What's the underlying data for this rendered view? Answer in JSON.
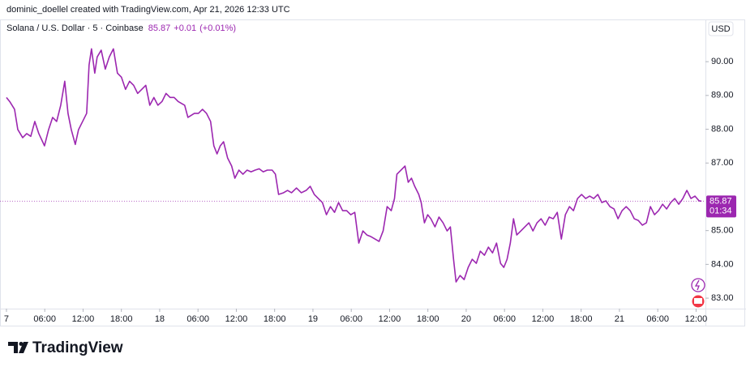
{
  "chart_data": {
    "type": "line",
    "header": "dominic_doellel created with TradingView.com, Apr 21, 2026 12:33 UTC",
    "brand": "TradingView",
    "currency": "USD",
    "last_price": 85.87,
    "change": "+0.01",
    "change_pct": "(+0.01%)",
    "countdown": "01:34",
    "grid": false,
    "xlim": [
      -1.01,
      109.47
    ],
    "ylim": [
      82.69,
      91.25
    ],
    "xticks": [
      {
        "value": 0,
        "label": "7"
      },
      {
        "value": 6,
        "label": "06:00"
      },
      {
        "value": 12,
        "label": "12:00"
      },
      {
        "value": 18,
        "label": "18:00"
      },
      {
        "value": 24,
        "label": "18"
      },
      {
        "value": 30,
        "label": "06:00"
      },
      {
        "value": 36,
        "label": "12:00"
      },
      {
        "value": 42,
        "label": "18:00"
      },
      {
        "value": 48,
        "label": "19"
      },
      {
        "value": 54,
        "label": "06:00"
      },
      {
        "value": 60,
        "label": "12:00"
      },
      {
        "value": 66,
        "label": "18:00"
      },
      {
        "value": 72,
        "label": "20"
      },
      {
        "value": 78,
        "label": "06:00"
      },
      {
        "value": 84,
        "label": "12:00"
      },
      {
        "value": 90,
        "label": "18:00"
      },
      {
        "value": 96,
        "label": "21"
      },
      {
        "value": 102,
        "label": "06:00"
      },
      {
        "value": 108,
        "label": "12:00"
      }
    ],
    "yticks": [
      {
        "value": 83,
        "label": "83.00"
      },
      {
        "value": 84,
        "label": "84.00"
      },
      {
        "value": 85,
        "label": "85.00"
      },
      {
        "value": 87,
        "label": "87.00"
      },
      {
        "value": 88,
        "label": "88.00"
      },
      {
        "value": 89,
        "label": "89.00"
      },
      {
        "value": 90,
        "label": "90.00"
      }
    ],
    "x": [
      0,
      0.51,
      1.27,
      1.78,
      2.54,
      3.17,
      3.81,
      4.44,
      5.07,
      5.96,
      6.6,
      7.23,
      7.86,
      8.5,
      9.13,
      9.64,
      10.15,
      10.78,
      11.29,
      11.93,
      12.56,
      12.94,
      13.32,
      13.83,
      14.21,
      14.84,
      15.48,
      16.11,
      16.75,
      17.38,
      18.01,
      18.65,
      19.28,
      19.92,
      20.55,
      21.19,
      21.82,
      22.45,
      23.09,
      23.72,
      24.36,
      24.99,
      25.63,
      26.26,
      26.89,
      27.91,
      28.42,
      29.43,
      30.07,
      30.7,
      31.33,
      31.97,
      32.48,
      32.98,
      33.49,
      34.0,
      34.63,
      35.27,
      35.77,
      36.41,
      37.04,
      37.68,
      38.31,
      38.95,
      39.58,
      40.21,
      40.85,
      41.61,
      42.12,
      42.62,
      43.39,
      44.02,
      44.65,
      45.42,
      46.18,
      46.94,
      47.57,
      48.21,
      48.84,
      49.48,
      50.11,
      50.74,
      51.38,
      52.01,
      52.65,
      53.28,
      53.92,
      54.55,
      55.18,
      55.82,
      56.45,
      57.09,
      57.72,
      58.36,
      58.99,
      59.62,
      60.26,
      60.77,
      61.15,
      61.78,
      62.42,
      62.92,
      63.43,
      63.94,
      64.57,
      64.95,
      65.46,
      65.97,
      66.47,
      67.11,
      67.74,
      68.38,
      69.01,
      69.52,
      70.02,
      70.41,
      71.04,
      71.68,
      72.31,
      72.94,
      73.58,
      74.21,
      74.85,
      75.48,
      76.12,
      76.75,
      77.38,
      77.89,
      78.4,
      78.91,
      79.41,
      79.92,
      80.56,
      81.19,
      81.82,
      82.46,
      83.09,
      83.73,
      84.36,
      85.0,
      85.63,
      86.26,
      86.9,
      87.53,
      88.17,
      88.8,
      89.44,
      90.07,
      90.71,
      91.34,
      91.97,
      92.61,
      93.24,
      93.88,
      94.51,
      95.15,
      95.78,
      96.41,
      97.05,
      97.68,
      98.32,
      98.95,
      99.59,
      100.22,
      100.85,
      101.49,
      102.12,
      102.76,
      103.39,
      104.03,
      104.66,
      105.29,
      105.93,
      106.56,
      107.2,
      107.83,
      108.47,
      108.85
    ],
    "series": [
      {
        "name": "Solana / U.S. Dollar · 5 · Coinbase",
        "color": "#9c27b0",
        "values": [
          88.94,
          88.82,
          88.59,
          87.99,
          87.75,
          87.87,
          87.79,
          88.23,
          87.87,
          87.51,
          87.99,
          88.35,
          88.23,
          88.71,
          89.42,
          88.47,
          87.99,
          87.55,
          87.99,
          88.23,
          88.47,
          89.9,
          90.38,
          89.66,
          90.14,
          90.34,
          89.78,
          90.14,
          90.38,
          89.66,
          89.54,
          89.18,
          89.42,
          89.3,
          89.06,
          89.18,
          89.3,
          88.71,
          88.94,
          88.71,
          88.82,
          89.06,
          88.94,
          88.94,
          88.82,
          88.71,
          88.35,
          88.47,
          88.47,
          88.59,
          88.47,
          88.23,
          87.51,
          87.27,
          87.51,
          87.63,
          87.15,
          86.91,
          86.55,
          86.79,
          86.67,
          86.79,
          86.74,
          86.79,
          86.83,
          86.74,
          86.79,
          86.79,
          86.67,
          86.07,
          86.12,
          86.19,
          86.12,
          86.26,
          86.12,
          86.19,
          86.31,
          86.07,
          85.95,
          85.83,
          85.47,
          85.71,
          85.54,
          85.83,
          85.59,
          85.59,
          85.47,
          85.54,
          84.63,
          84.99,
          84.87,
          84.82,
          84.75,
          84.68,
          84.99,
          85.71,
          85.59,
          85.95,
          86.67,
          86.79,
          86.91,
          86.43,
          86.55,
          86.31,
          86.07,
          85.83,
          85.23,
          85.47,
          85.35,
          85.11,
          85.4,
          85.23,
          84.99,
          85.11,
          84.15,
          83.48,
          83.67,
          83.55,
          83.91,
          84.15,
          84.03,
          84.39,
          84.27,
          84.51,
          84.34,
          84.63,
          84.03,
          83.91,
          84.15,
          84.63,
          85.35,
          84.87,
          84.99,
          85.11,
          85.23,
          84.99,
          85.23,
          85.35,
          85.16,
          85.4,
          85.35,
          85.54,
          84.75,
          85.47,
          85.71,
          85.59,
          85.95,
          86.07,
          85.95,
          86.02,
          85.95,
          86.07,
          85.83,
          85.88,
          85.71,
          85.64,
          85.35,
          85.59,
          85.71,
          85.59,
          85.35,
          85.3,
          85.16,
          85.23,
          85.71,
          85.47,
          85.59,
          85.78,
          85.64,
          85.83,
          85.95,
          85.78,
          85.95,
          86.19,
          85.95,
          86.02,
          85.88,
          85.87
        ]
      }
    ]
  }
}
